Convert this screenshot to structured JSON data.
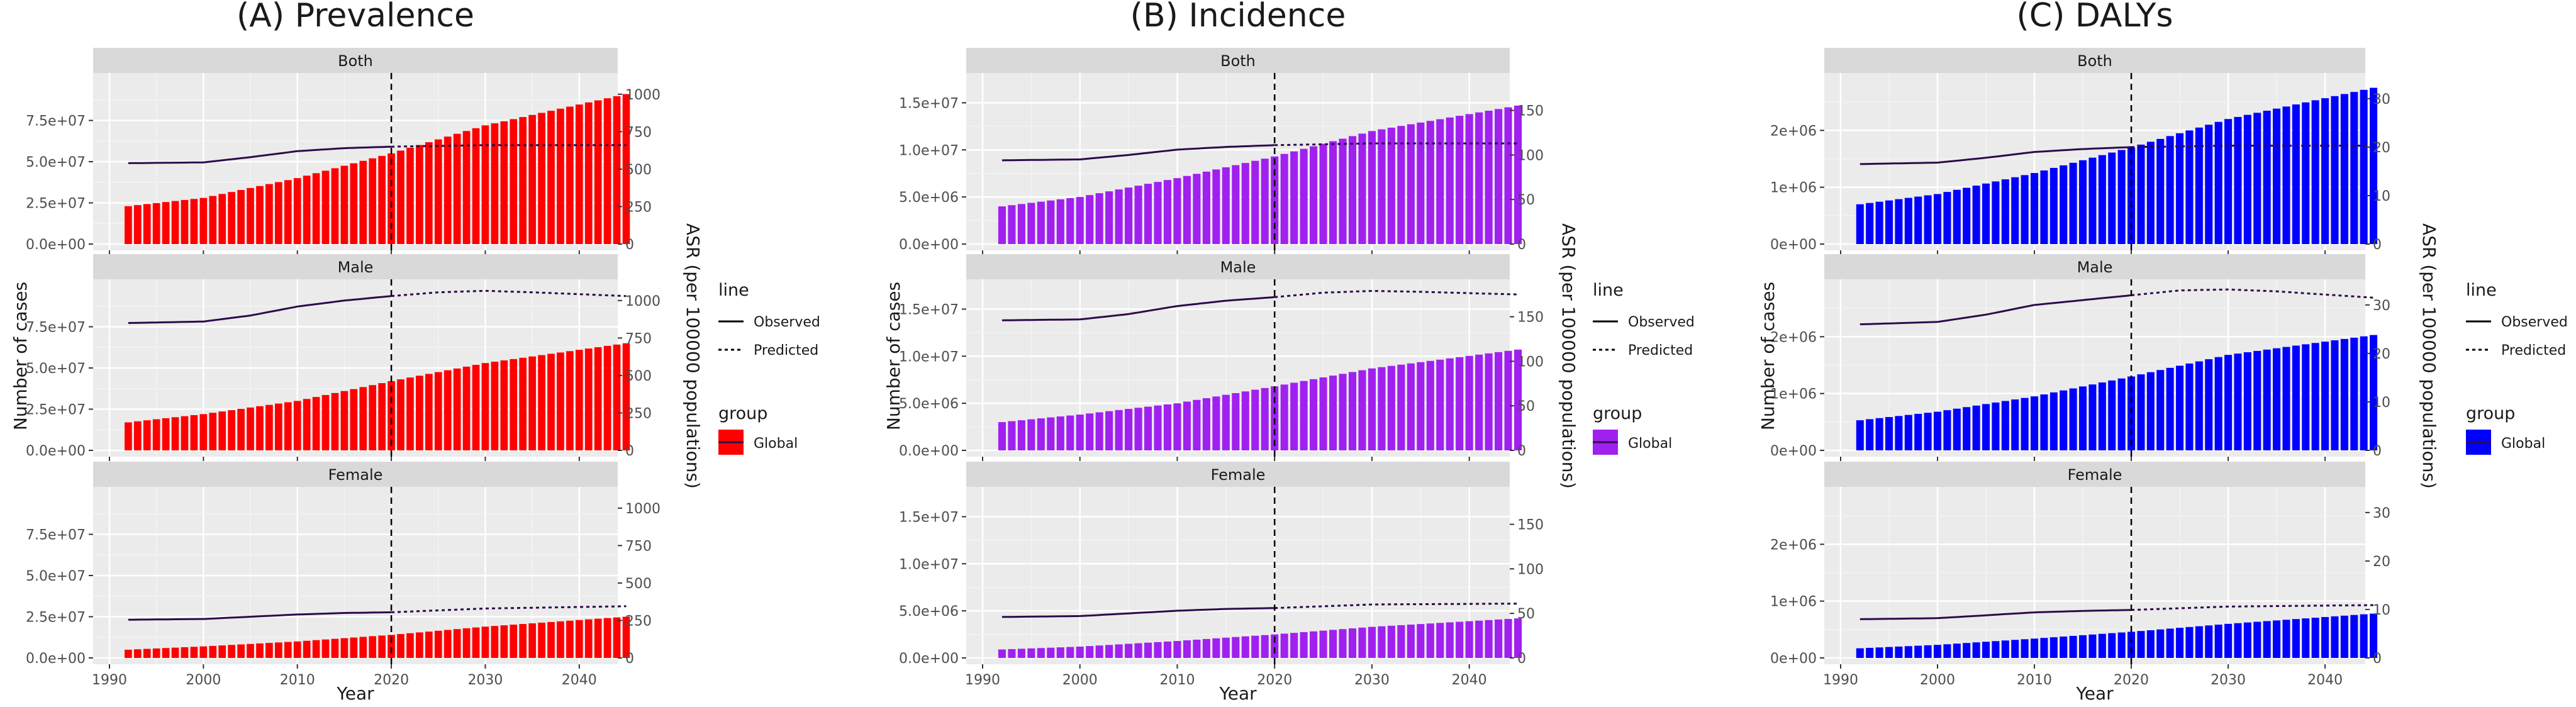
{
  "chart_data": [
    {
      "type": "bar+line",
      "title": "(A) Prevalence",
      "xlabel": "Year",
      "ylabel": "Number of cases",
      "y2label": "ASR (per 100000 populations)",
      "bar_color": "#ff0000",
      "line_color": "#2d0a4a",
      "cutoff_year": 2020,
      "xlim": [
        1990,
        2045
      ],
      "x_ticks": [
        1990,
        2000,
        2010,
        2020,
        2030,
        2040
      ],
      "x_tick_labels": [
        "1990",
        "2000",
        "2010",
        "2020",
        "2030",
        "2040"
      ],
      "ylim": [
        0,
        100000000
      ],
      "y_ticks": [
        0,
        25000000,
        50000000,
        75000000
      ],
      "y_tick_labels": [
        "0.0e+00",
        "2.5e+07",
        "5.0e+07",
        "7.5e+07"
      ],
      "y2lim": [
        0,
        1100
      ],
      "y2_ticks": [
        0,
        250,
        500,
        750,
        1000
      ],
      "y2_tick_labels": [
        "0",
        "250",
        "500",
        "750",
        "1000"
      ],
      "years": [
        1992,
        2045
      ],
      "facets": [
        {
          "name": "Both",
          "bar_anchors": [
            [
              1992,
              23000000
            ],
            [
              2000,
              28000000
            ],
            [
              2010,
              40000000
            ],
            [
              2020,
              55000000
            ],
            [
              2030,
              72000000
            ],
            [
              2045,
              91000000
            ]
          ],
          "asr_observed": [
            [
              1992,
              540
            ],
            [
              2000,
              545
            ],
            [
              2005,
              580
            ],
            [
              2010,
              620
            ],
            [
              2015,
              640
            ],
            [
              2020,
              650
            ]
          ],
          "asr_predicted": [
            [
              2020,
              650
            ],
            [
              2030,
              660
            ],
            [
              2045,
              660
            ]
          ]
        },
        {
          "name": "Male",
          "bar_anchors": [
            [
              1992,
              17000000
            ],
            [
              2000,
              22000000
            ],
            [
              2010,
              30000000
            ],
            [
              2020,
              42000000
            ],
            [
              2030,
              53000000
            ],
            [
              2045,
              65000000
            ]
          ],
          "asr_observed": [
            [
              1992,
              850
            ],
            [
              2000,
              860
            ],
            [
              2005,
              900
            ],
            [
              2010,
              960
            ],
            [
              2015,
              1000
            ],
            [
              2020,
              1030
            ]
          ],
          "asr_predicted": [
            [
              2020,
              1030
            ],
            [
              2025,
              1055
            ],
            [
              2030,
              1065
            ],
            [
              2035,
              1055
            ],
            [
              2045,
              1030
            ]
          ]
        },
        {
          "name": "Female",
          "bar_anchors": [
            [
              1992,
              5000000
            ],
            [
              2000,
              7000000
            ],
            [
              2010,
              10000000
            ],
            [
              2020,
              14000000
            ],
            [
              2030,
              19000000
            ],
            [
              2045,
              25000000
            ]
          ],
          "asr_observed": [
            [
              1992,
              255
            ],
            [
              2000,
              260
            ],
            [
              2005,
              275
            ],
            [
              2010,
              290
            ],
            [
              2015,
              300
            ],
            [
              2020,
              305
            ]
          ],
          "asr_predicted": [
            [
              2020,
              305
            ],
            [
              2030,
              330
            ],
            [
              2045,
              345
            ]
          ]
        }
      ],
      "legend": {
        "line_title": "line",
        "line_items": [
          "Observed",
          "Predicted"
        ],
        "group_title": "group",
        "group_items": [
          "Global"
        ]
      }
    },
    {
      "type": "bar+line",
      "title": "(B) Incidence",
      "xlabel": "Year",
      "ylabel": "Number of cases",
      "y2label": "ASR (per 100000 populations)",
      "bar_color": "#a020f0",
      "line_color": "#2d0a4a",
      "cutoff_year": 2020,
      "xlim": [
        1990,
        2045
      ],
      "x_ticks": [
        1990,
        2000,
        2010,
        2020,
        2030,
        2040
      ],
      "x_tick_labels": [
        "1990",
        "2000",
        "2010",
        "2020",
        "2030",
        "2040"
      ],
      "ylim": [
        0,
        17500000
      ],
      "y_ticks": [
        0,
        5000000,
        10000000,
        15000000
      ],
      "y_tick_labels": [
        "0.0e+00",
        "5.0e+06",
        "1.0e+07",
        "1.5e+07"
      ],
      "y2lim": [
        0,
        185
      ],
      "y2_ticks": [
        0,
        50,
        100,
        150
      ],
      "y2_tick_labels": [
        "0",
        "50",
        "100",
        "150"
      ],
      "years": [
        1992,
        2045
      ],
      "facets": [
        {
          "name": "Both",
          "bar_anchors": [
            [
              1992,
              4000000
            ],
            [
              2000,
              5000000
            ],
            [
              2010,
              7000000
            ],
            [
              2020,
              9300000
            ],
            [
              2030,
              12000000
            ],
            [
              2045,
              14700000
            ]
          ],
          "asr_observed": [
            [
              1992,
              94
            ],
            [
              2000,
              95
            ],
            [
              2005,
              100
            ],
            [
              2010,
              106
            ],
            [
              2015,
              109
            ],
            [
              2020,
              111
            ]
          ],
          "asr_predicted": [
            [
              2020,
              111
            ],
            [
              2030,
              113
            ],
            [
              2045,
              113
            ]
          ]
        },
        {
          "name": "Male",
          "bar_anchors": [
            [
              1992,
              3000000
            ],
            [
              2000,
              3800000
            ],
            [
              2010,
              5000000
            ],
            [
              2020,
              6800000
            ],
            [
              2030,
              8700000
            ],
            [
              2045,
              10700000
            ]
          ],
          "asr_observed": [
            [
              1992,
              146
            ],
            [
              2000,
              147
            ],
            [
              2005,
              153
            ],
            [
              2010,
              162
            ],
            [
              2015,
              168
            ],
            [
              2020,
              172
            ]
          ],
          "asr_predicted": [
            [
              2020,
              172
            ],
            [
              2025,
              177
            ],
            [
              2030,
              179
            ],
            [
              2035,
              178
            ],
            [
              2045,
              175
            ]
          ]
        },
        {
          "name": "Female",
          "bar_anchors": [
            [
              1992,
              900000
            ],
            [
              2000,
              1200000
            ],
            [
              2010,
              1800000
            ],
            [
              2020,
              2500000
            ],
            [
              2030,
              3300000
            ],
            [
              2045,
              4200000
            ]
          ],
          "asr_observed": [
            [
              1992,
              46
            ],
            [
              2000,
              47
            ],
            [
              2005,
              50
            ],
            [
              2010,
              53
            ],
            [
              2015,
              55
            ],
            [
              2020,
              56
            ]
          ],
          "asr_predicted": [
            [
              2020,
              56
            ],
            [
              2030,
              60
            ],
            [
              2045,
              61
            ]
          ]
        }
      ],
      "legend": {
        "line_title": "line",
        "line_items": [
          "Observed",
          "Predicted"
        ],
        "group_title": "group",
        "group_items": [
          "Global"
        ]
      }
    },
    {
      "type": "bar+line",
      "title": "(C) DALYs",
      "xlabel": "Year",
      "ylabel": "Number of cases",
      "y2label": "ASR (per 100000 populations)",
      "bar_color": "#0000ff",
      "line_color": "#2d0a4a",
      "cutoff_year": 2020,
      "xlim": [
        1990,
        2045
      ],
      "x_ticks": [
        1990,
        2000,
        2010,
        2020,
        2030,
        2040
      ],
      "x_tick_labels": [
        "1990",
        "2000",
        "2010",
        "2020",
        "2030",
        "2040"
      ],
      "ylim": [
        0,
        2900000
      ],
      "y_ticks": [
        0,
        1000000,
        2000000
      ],
      "y_tick_labels": [
        "0e+00",
        "1e+06",
        "2e+06"
      ],
      "y2lim": [
        0,
        34
      ],
      "y2_ticks": [
        0,
        10,
        20,
        30
      ],
      "y2_tick_labels": [
        "0",
        "10",
        "20",
        "30"
      ],
      "years": [
        1992,
        2045
      ],
      "facets": [
        {
          "name": "Both",
          "bar_anchors": [
            [
              1992,
              700000
            ],
            [
              2000,
              880000
            ],
            [
              2010,
              1250000
            ],
            [
              2020,
              1700000
            ],
            [
              2030,
              2200000
            ],
            [
              2045,
              2750000
            ]
          ],
          "asr_observed": [
            [
              1992,
              16.5
            ],
            [
              2000,
              16.8
            ],
            [
              2005,
              17.8
            ],
            [
              2010,
              19.0
            ],
            [
              2015,
              19.6
            ],
            [
              2020,
              20.0
            ]
          ],
          "asr_predicted": [
            [
              2020,
              20.0
            ],
            [
              2030,
              20.3
            ],
            [
              2045,
              20.3
            ]
          ]
        },
        {
          "name": "Male",
          "bar_anchors": [
            [
              1992,
              530000
            ],
            [
              2000,
              680000
            ],
            [
              2010,
              950000
            ],
            [
              2020,
              1300000
            ],
            [
              2030,
              1680000
            ],
            [
              2045,
              2030000
            ]
          ],
          "asr_observed": [
            [
              1992,
              26
            ],
            [
              2000,
              26.5
            ],
            [
              2005,
              28
            ],
            [
              2010,
              30
            ],
            [
              2015,
              31
            ],
            [
              2020,
              32
            ]
          ],
          "asr_predicted": [
            [
              2020,
              32
            ],
            [
              2025,
              33
            ],
            [
              2030,
              33.2
            ],
            [
              2035,
              32.8
            ],
            [
              2045,
              31.5
            ]
          ]
        },
        {
          "name": "Female",
          "bar_anchors": [
            [
              1992,
              170000
            ],
            [
              2000,
              230000
            ],
            [
              2010,
              340000
            ],
            [
              2020,
              460000
            ],
            [
              2030,
              600000
            ],
            [
              2045,
              780000
            ]
          ],
          "asr_observed": [
            [
              1992,
              8.0
            ],
            [
              2000,
              8.2
            ],
            [
              2005,
              8.8
            ],
            [
              2010,
              9.4
            ],
            [
              2015,
              9.7
            ],
            [
              2020,
              9.9
            ]
          ],
          "asr_predicted": [
            [
              2020,
              9.9
            ],
            [
              2030,
              10.6
            ],
            [
              2045,
              10.9
            ]
          ]
        }
      ],
      "legend": {
        "line_title": "line",
        "line_items": [
          "Observed",
          "Predicted"
        ],
        "group_title": "group",
        "group_items": [
          "Global"
        ]
      }
    }
  ]
}
